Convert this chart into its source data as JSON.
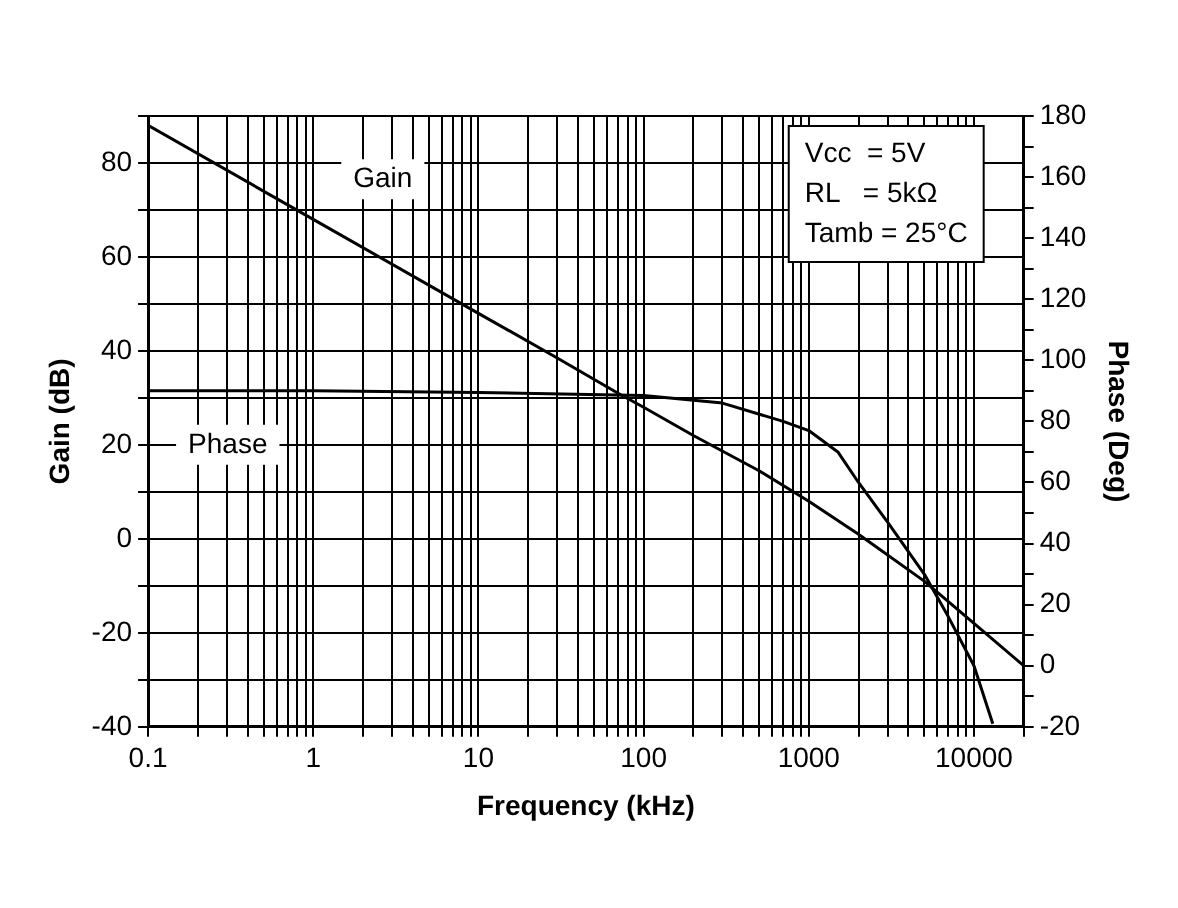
{
  "chart_data": {
    "type": "line",
    "xlabel": "Frequency (kHz)",
    "ylabel": "Gain (dB)",
    "y2label": "Phase (Deg)",
    "log": "x",
    "grid": true,
    "legend": false,
    "marker": "none",
    "line_style": "solid",
    "xlim": [
      0.1,
      20000
    ],
    "xticks": [
      0.1,
      {
        "value": 0.2,
        "label": null
      },
      {
        "value": 0.3,
        "label": null
      },
      {
        "value": 0.4,
        "label": null
      },
      {
        "value": 0.5,
        "label": null
      },
      {
        "value": 0.6,
        "label": null
      },
      {
        "value": 0.7,
        "label": null
      },
      {
        "value": 0.8,
        "label": null
      },
      {
        "value": 0.9,
        "label": null
      },
      1,
      {
        "value": 2,
        "label": null
      },
      {
        "value": 3,
        "label": null
      },
      {
        "value": 4,
        "label": null
      },
      {
        "value": 5,
        "label": null
      },
      {
        "value": 6,
        "label": null
      },
      {
        "value": 7,
        "label": null
      },
      {
        "value": 8,
        "label": null
      },
      {
        "value": 9,
        "label": null
      },
      10,
      {
        "value": 20,
        "label": null
      },
      {
        "value": 30,
        "label": null
      },
      {
        "value": 40,
        "label": null
      },
      {
        "value": 50,
        "label": null
      },
      {
        "value": 60,
        "label": null
      },
      {
        "value": 70,
        "label": null
      },
      {
        "value": 80,
        "label": null
      },
      {
        "value": 90,
        "label": null
      },
      100,
      {
        "value": 200,
        "label": null
      },
      {
        "value": 300,
        "label": null
      },
      {
        "value": 400,
        "label": null
      },
      {
        "value": 500,
        "label": null
      },
      {
        "value": 600,
        "label": null
      },
      {
        "value": 700,
        "label": null
      },
      {
        "value": 800,
        "label": null
      },
      {
        "value": 900,
        "label": null
      },
      1000,
      {
        "value": 2000,
        "label": null
      },
      {
        "value": 3000,
        "label": null
      },
      {
        "value": 4000,
        "label": null
      },
      {
        "value": 5000,
        "label": null
      },
      {
        "value": 6000,
        "label": null
      },
      {
        "value": 7000,
        "label": null
      },
      {
        "value": 8000,
        "label": null
      },
      {
        "value": 9000,
        "label": null
      },
      10000,
      {
        "value": 20000,
        "label": null
      }
    ],
    "ylim": [
      -40,
      90
    ],
    "yticks": [
      -40,
      {
        "value": -30,
        "label": null
      },
      -20,
      {
        "value": -10,
        "label": null
      },
      0,
      {
        "value": 10,
        "label": null
      },
      20,
      {
        "value": 30,
        "label": null
      },
      40,
      {
        "value": 50,
        "label": null
      },
      60,
      {
        "value": 70,
        "label": null
      },
      80,
      {
        "value": 90,
        "label": null
      }
    ],
    "y2lim": [
      -20,
      180
    ],
    "y2ticks": [
      -20,
      {
        "value": -10,
        "label": null
      },
      0,
      {
        "value": 10,
        "label": null
      },
      20,
      {
        "value": 30,
        "label": null
      },
      40,
      {
        "value": 50,
        "label": null
      },
      60,
      {
        "value": 70,
        "label": null
      },
      80,
      {
        "value": 90,
        "label": null
      },
      100,
      {
        "value": 110,
        "label": null
      },
      120,
      {
        "value": 130,
        "label": null
      },
      140,
      {
        "value": 150,
        "label": null
      },
      160,
      {
        "value": 170,
        "label": null
      },
      180
    ],
    "annotations": [
      "Vcc  = 5V",
      "RL   = 5kΩ",
      "Tamb = 25°C"
    ],
    "series": [
      {
        "name": "Gain",
        "color": "#000000",
        "x": [
          0.1,
          1,
          10,
          30,
          70,
          100,
          200,
          500,
          1000,
          2000,
          5000,
          10000,
          20000
        ],
        "values": [
          88,
          68,
          48,
          38.5,
          31,
          28,
          22,
          14.5,
          8,
          1,
          -9,
          -18,
          -27
        ]
      },
      {
        "name": "Phase",
        "color": "#000000",
        "axis": "y2",
        "x": [
          0.1,
          1,
          10,
          100,
          300,
          700,
          1000,
          1500,
          2000,
          3000,
          5000,
          7000,
          10000,
          13000
        ],
        "values": [
          90,
          90,
          89.5,
          88.5,
          86,
          80,
          77,
          70,
          60,
          47,
          30,
          16,
          0,
          -19
        ]
      }
    ]
  }
}
